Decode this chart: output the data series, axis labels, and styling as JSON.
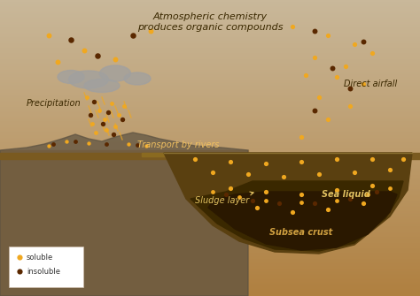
{
  "bg_top_color": "#c9b89a",
  "bg_bottom_color": "#b08040",
  "ground_color": "#6b4e1a",
  "sea_color": "#5a4010",
  "cloud_color": "#a0a0a0",
  "soluble_color": "#f0a820",
  "insoluble_color": "#5a2800",
  "sludge_color": "#3a2800",
  "title_text": "Atmospheric chemistry\nproduces organic compounds",
  "label_precipitation": "Precipitation",
  "label_direct_airfall": "Direct airfall",
  "label_transport": "Transport by rivers",
  "label_sea_liquid": "Sea liquid",
  "label_sludge": "Sludge layer",
  "label_subsea": "Subsea crust",
  "legend_soluble": "soluble",
  "legend_insoluble": "insoluble",
  "font_size_title": 8,
  "font_size_label": 7
}
